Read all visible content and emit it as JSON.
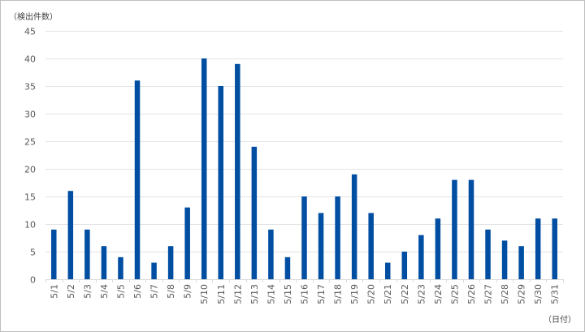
{
  "chart_data": {
    "type": "bar",
    "title": "",
    "ylabel": "（検出件数）",
    "xlabel": "（日付）",
    "ylim": [
      0,
      45
    ],
    "yticks": [
      0,
      5,
      10,
      15,
      20,
      25,
      30,
      35,
      40,
      45
    ],
    "grid": true,
    "legend": "none",
    "bar_color": "#004ea2",
    "categories": [
      "5/1",
      "5/2",
      "5/3",
      "5/4",
      "5/5",
      "5/6",
      "5/7",
      "5/8",
      "5/9",
      "5/10",
      "5/11",
      "5/12",
      "5/13",
      "5/14",
      "5/15",
      "5/16",
      "5/17",
      "5/18",
      "5/19",
      "5/20",
      "5/21",
      "5/22",
      "5/23",
      "5/24",
      "5/25",
      "5/26",
      "5/27",
      "5/28",
      "5/29",
      "5/30",
      "5/31"
    ],
    "values": [
      9,
      16,
      9,
      6,
      4,
      36,
      3,
      6,
      13,
      40,
      35,
      39,
      24,
      9,
      4,
      15,
      12,
      15,
      19,
      12,
      3,
      5,
      8,
      11,
      18,
      18,
      9,
      7,
      6,
      11,
      11
    ]
  }
}
